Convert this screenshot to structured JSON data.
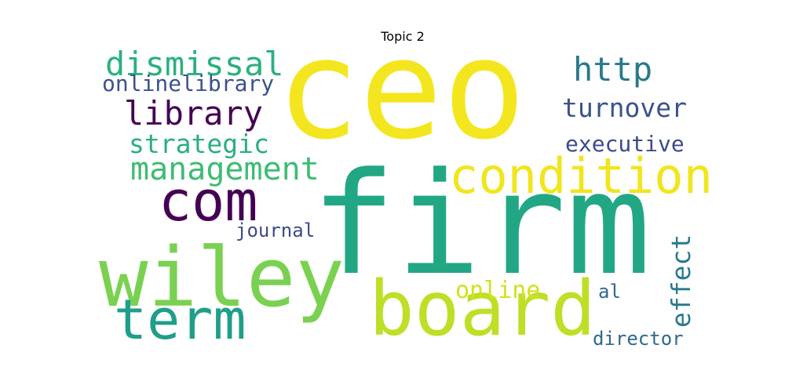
{
  "chart_data": {
    "type": "wordcloud",
    "title": "Topic 2",
    "words": [
      {
        "text": "ceo",
        "color": "#f4e61e"
      },
      {
        "text": "firm",
        "color": "#22a785"
      },
      {
        "text": "wiley",
        "color": "#7ad151"
      },
      {
        "text": "board",
        "color": "#bddf26"
      },
      {
        "text": "condition",
        "color": "#f1e51d"
      },
      {
        "text": "com",
        "color": "#440154"
      },
      {
        "text": "term",
        "color": "#1f9e89"
      },
      {
        "text": "management",
        "color": "#3dbc74"
      },
      {
        "text": "library",
        "color": "#440154"
      },
      {
        "text": "dismissal",
        "color": "#2ab07f"
      },
      {
        "text": "http",
        "color": "#2a788e"
      },
      {
        "text": "strategic",
        "color": "#29af7f"
      },
      {
        "text": "turnover",
        "color": "#3b528b"
      },
      {
        "text": "executive",
        "color": "#3e4a89"
      },
      {
        "text": "onlinelibrary",
        "color": "#3b528b"
      },
      {
        "text": "effect",
        "color": "#2a788e"
      },
      {
        "text": "online",
        "color": "#d2e21b"
      },
      {
        "text": "journal",
        "color": "#3e4a89"
      },
      {
        "text": "director",
        "color": "#31688e"
      },
      {
        "text": "al",
        "color": "#31688e"
      }
    ]
  }
}
